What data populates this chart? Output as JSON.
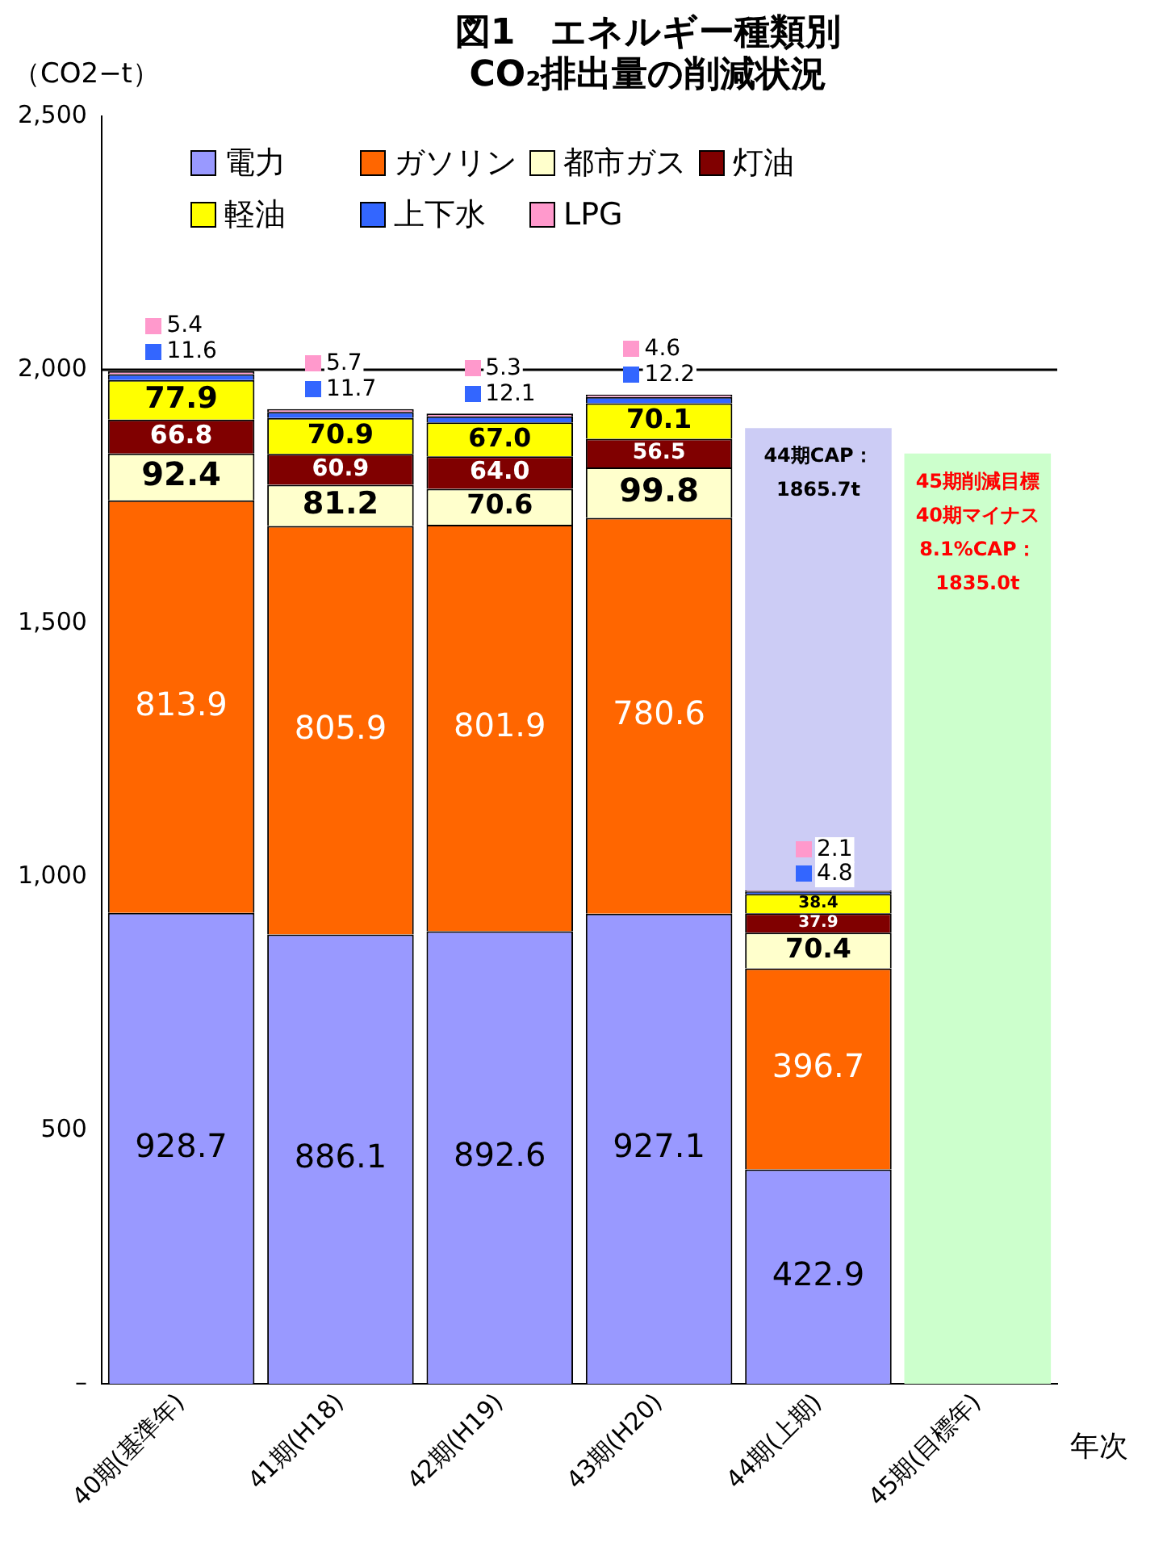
{
  "chart_data": {
    "type": "bar",
    "title": "図1　エネルギー種類別\nCO₂排出量の削減状況",
    "ylabel": "（CO2−t）",
    "xlabel": "年次",
    "categories": [
      "40期(基準年)",
      "41期(H18)",
      "42期(H19)",
      "43期(H20)",
      "44期(上期)",
      "45期(目標年)"
    ],
    "stacked": true,
    "legend": "top left",
    "grid": false,
    "ylim": [
      0,
      2500
    ],
    "yticks": [
      {
        "value": 0,
        "label": "–"
      },
      {
        "value": 500,
        "label": "500"
      },
      {
        "value": 1000,
        "label": "1,000"
      },
      {
        "value": 1500,
        "label": "1,500"
      },
      {
        "value": 2000,
        "label": "2,000"
      },
      {
        "value": 2500,
        "label": "2,500"
      }
    ],
    "ref_lines": [
      {
        "axis": "y",
        "value": 2000,
        "color": "#000000"
      }
    ],
    "series": [
      {
        "name": "電力",
        "color": "#9999ff",
        "values": [
          928.7,
          886.1,
          892.6,
          927.1,
          422.9,
          null
        ],
        "value_labels": [
          "928.7",
          "886.1",
          "892.6",
          "927.1",
          "422.9",
          null
        ]
      },
      {
        "name": "ガソリン",
        "color": "#ff6600",
        "values": [
          813.9,
          805.9,
          801.9,
          780.6,
          396.7,
          null
        ],
        "value_labels": [
          "813.9",
          "805.9",
          "801.9",
          "780.6",
          "396.7",
          null
        ]
      },
      {
        "name": "都市ガス",
        "color": "#ffffcc",
        "values": [
          92.4,
          81.2,
          70.6,
          99.8,
          70.4,
          null
        ],
        "value_labels": [
          "92.4",
          "81.2",
          "70.6",
          "99.8",
          "70.4",
          null
        ]
      },
      {
        "name": "灯油",
        "color": "#800000",
        "values": [
          66.8,
          60.9,
          64.0,
          56.5,
          37.9,
          null
        ],
        "value_labels": [
          "66.8",
          "60.9",
          "64.0",
          "56.5",
          "37.9",
          null
        ]
      },
      {
        "name": "軽油",
        "color": "#ffff00",
        "values": [
          77.9,
          70.9,
          67.0,
          70.1,
          38.4,
          null
        ],
        "value_labels": [
          "77.9",
          "70.9",
          "67.0",
          "70.1",
          "38.4",
          null
        ]
      },
      {
        "name": "上下水",
        "color": "#3366ff",
        "values": [
          11.6,
          11.7,
          12.1,
          12.2,
          4.8,
          null
        ],
        "value_labels": [
          "11.6",
          "11.7",
          "12.1",
          "12.2",
          "4.8",
          null
        ]
      },
      {
        "name": "LPG",
        "color": "#ff99cc",
        "values": [
          5.4,
          5.7,
          5.3,
          4.6,
          2.1,
          null
        ],
        "value_labels": [
          "5.4",
          "5.7",
          "5.3",
          "4.6",
          "2.1",
          null
        ]
      },
      {
        "color": "#ccccf5",
        "values": [
          null,
          null,
          null,
          null,
          912,
          null
        ]
      },
      {
        "color": "#ccffcc",
        "values": [
          null,
          null,
          null,
          null,
          null,
          1835
        ]
      }
    ],
    "annotations": [
      "44期CAP：1865.7t",
      "45期削減目標40期マイナス8.1%CAP：1835.0t"
    ]
  }
}
